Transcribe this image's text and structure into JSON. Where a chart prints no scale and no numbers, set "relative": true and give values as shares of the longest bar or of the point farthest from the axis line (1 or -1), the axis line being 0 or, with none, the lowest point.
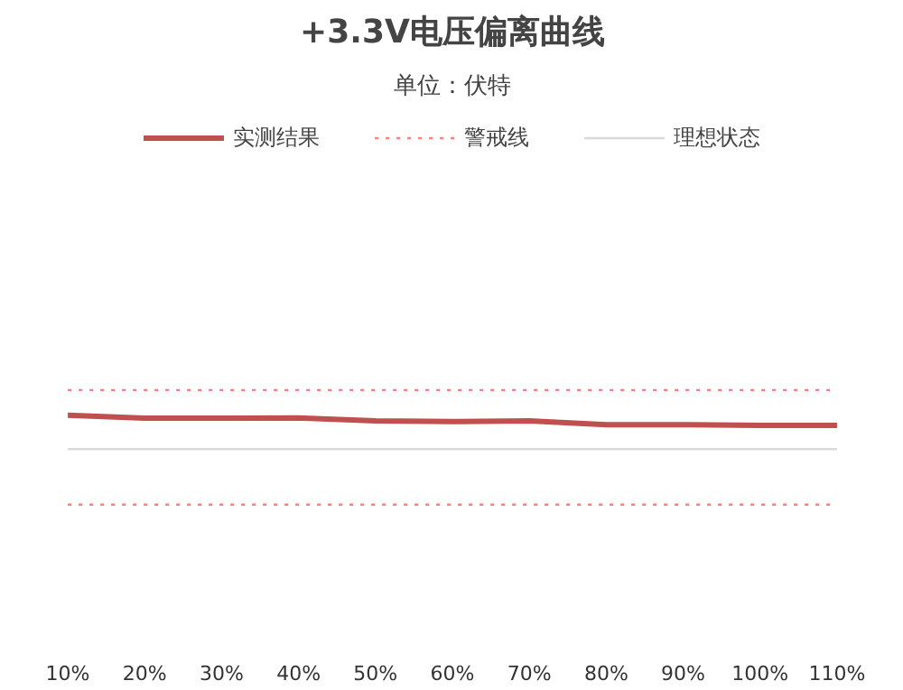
{
  "chart_data": {
    "type": "line",
    "title": "+3.3V电压偏离曲线",
    "subtitle": "单位：伏特",
    "categories": [
      "10%",
      "20%",
      "30%",
      "40%",
      "50%",
      "60%",
      "70%",
      "80%",
      "90%",
      "100%",
      "110%"
    ],
    "relative": true,
    "series": [
      {
        "name": "实测结果",
        "color": "#c0504d",
        "values": [
          1,
          0.91,
          0.91,
          0.92,
          0.83,
          0.81,
          0.83,
          0.72,
          0.72,
          0.7,
          0.7
        ]
      }
    ],
    "ref_lines": [
      {
        "axis": "y",
        "value": 1.74,
        "label": "警戒线",
        "color": "#ff7c80",
        "line_style": "dotted"
      },
      {
        "axis": "y",
        "value": 0,
        "label": "理想状态",
        "color": "#d9d9d9",
        "line_style": "solid"
      },
      {
        "axis": "y",
        "value": -1.64,
        "color": "#ff7c80",
        "line_style": "dotted"
      }
    ],
    "legend": "top",
    "line_style": "solid"
  }
}
